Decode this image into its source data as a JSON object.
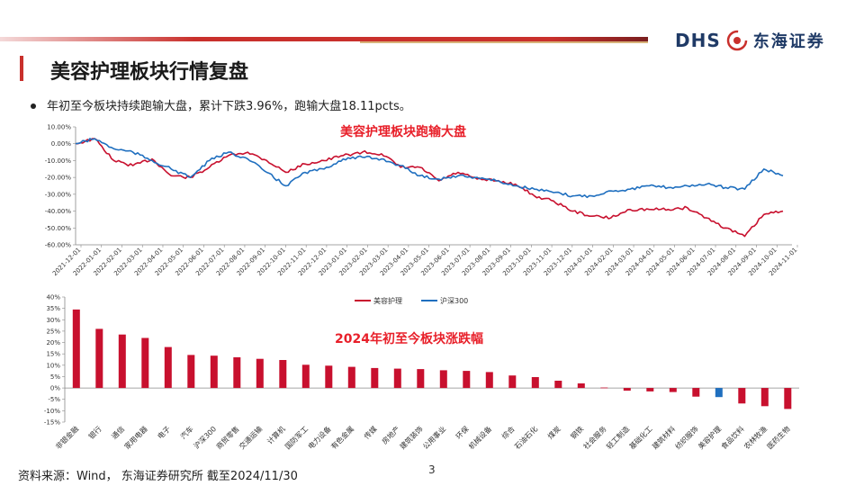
{
  "header": {
    "logo_latin": "DHS",
    "logo_cn": "东海证券"
  },
  "page": {
    "title": "美容护理板块行情复盘",
    "bullet": "年初至今板块持续跑输大盘，累计下跌3.96%，跑输大盘18.11pcts。",
    "footer": "资料来源：Wind， 东海证券研究所  截至2024/11/30",
    "page_number": "3"
  },
  "colors": {
    "brand_red": "#c9302c",
    "series_red": "#c8102e",
    "series_blue": "#1f6fbf",
    "bar_red": "#c8102e",
    "bar_blue": "#1f6fbf"
  },
  "chart_data": [
    {
      "type": "line",
      "annotation": "美容护理板块跑输大盘",
      "y_ticks": [
        "10.00%",
        "0.00%",
        "-10.00%",
        "-20.00%",
        "-30.00%",
        "-40.00%",
        "-50.00%",
        "-60.00%"
      ],
      "ylim": [
        -60,
        10
      ],
      "x_ticks": [
        "2021-12-01",
        "2022-01-01",
        "2022-02-01",
        "2022-03-01",
        "2022-04-01",
        "2022-05-01",
        "2022-06-01",
        "2022-07-01",
        "2022-08-01",
        "2022-09-01",
        "2022-10-01",
        "2022-11-01",
        "2022-12-01",
        "2023-01-01",
        "2023-02-01",
        "2023-03-01",
        "2023-04-01",
        "2023-05-01",
        "2023-06-01",
        "2023-07-01",
        "2023-08-01",
        "2023-09-01",
        "2023-10-01",
        "2023-11-01",
        "2023-12-01",
        "2024-01-01",
        "2024-02-01",
        "2024-03-01",
        "2024-04-01",
        "2024-05-01",
        "2024-06-01",
        "2024-07-01",
        "2024-08-01",
        "2024-09-01",
        "2024-10-01",
        "2024-11-01"
      ],
      "legend_position": "bottom",
      "series": [
        {
          "name": "美容护理",
          "values": [
            0,
            3,
            -10,
            -13,
            -9,
            -19,
            -20,
            -14,
            -7,
            -5,
            -10,
            -17,
            -12,
            -10,
            -7,
            -5,
            -6,
            -14,
            -14,
            -22,
            -17,
            -21,
            -22,
            -24,
            -31,
            -34,
            -40,
            -43,
            -44,
            -39,
            -39,
            -39,
            -38,
            -44,
            -50,
            -55,
            -42,
            -40
          ]
        },
        {
          "name": "沪深300",
          "values": [
            0,
            3,
            -3,
            -5,
            -10,
            -15,
            -20,
            -10,
            -5,
            -9,
            -17,
            -25,
            -17,
            -15,
            -9,
            -8,
            -9,
            -13,
            -19,
            -21,
            -19,
            -20,
            -22,
            -25,
            -27,
            -29,
            -31,
            -31,
            -28,
            -27,
            -25,
            -26,
            -25,
            -24,
            -26,
            -27,
            -15,
            -19
          ]
        }
      ]
    },
    {
      "type": "bar",
      "annotation": "2024年初至今板块涨跌幅",
      "y_ticks": [
        "40%",
        "35%",
        "30%",
        "25%",
        "20%",
        "15%",
        "10%",
        "5%",
        "0%",
        "-5%",
        "-10%",
        "-15%"
      ],
      "ylim": [
        -15,
        40
      ],
      "categories": [
        "非银金融",
        "银行",
        "通信",
        "家用电器",
        "电子",
        "汽车",
        "沪深300",
        "商贸零售",
        "交通运输",
        "计算机",
        "国防军工",
        "电力设备",
        "有色金属",
        "传媒",
        "房地产",
        "建筑装饰",
        "公用事业",
        "环保",
        "机械设备",
        "综合",
        "石油石化",
        "煤炭",
        "钢铁",
        "社会服务",
        "轻工制造",
        "基础化工",
        "建筑材料",
        "纺织服饰",
        "美容护理",
        "食品饮料",
        "农林牧渔",
        "医药生物"
      ],
      "values": [
        34.5,
        26.0,
        23.5,
        22.0,
        18.0,
        14.5,
        14.2,
        13.5,
        12.8,
        12.3,
        10.2,
        9.8,
        9.3,
        8.8,
        8.5,
        8.3,
        7.8,
        7.5,
        7.0,
        5.5,
        4.8,
        3.2,
        2.0,
        0.2,
        -1.2,
        -1.5,
        -1.8,
        -3.8,
        -4.0,
        -6.8,
        -8.0,
        -9.2
      ],
      "highlight": [
        "沪深300",
        "美容护理"
      ]
    }
  ]
}
